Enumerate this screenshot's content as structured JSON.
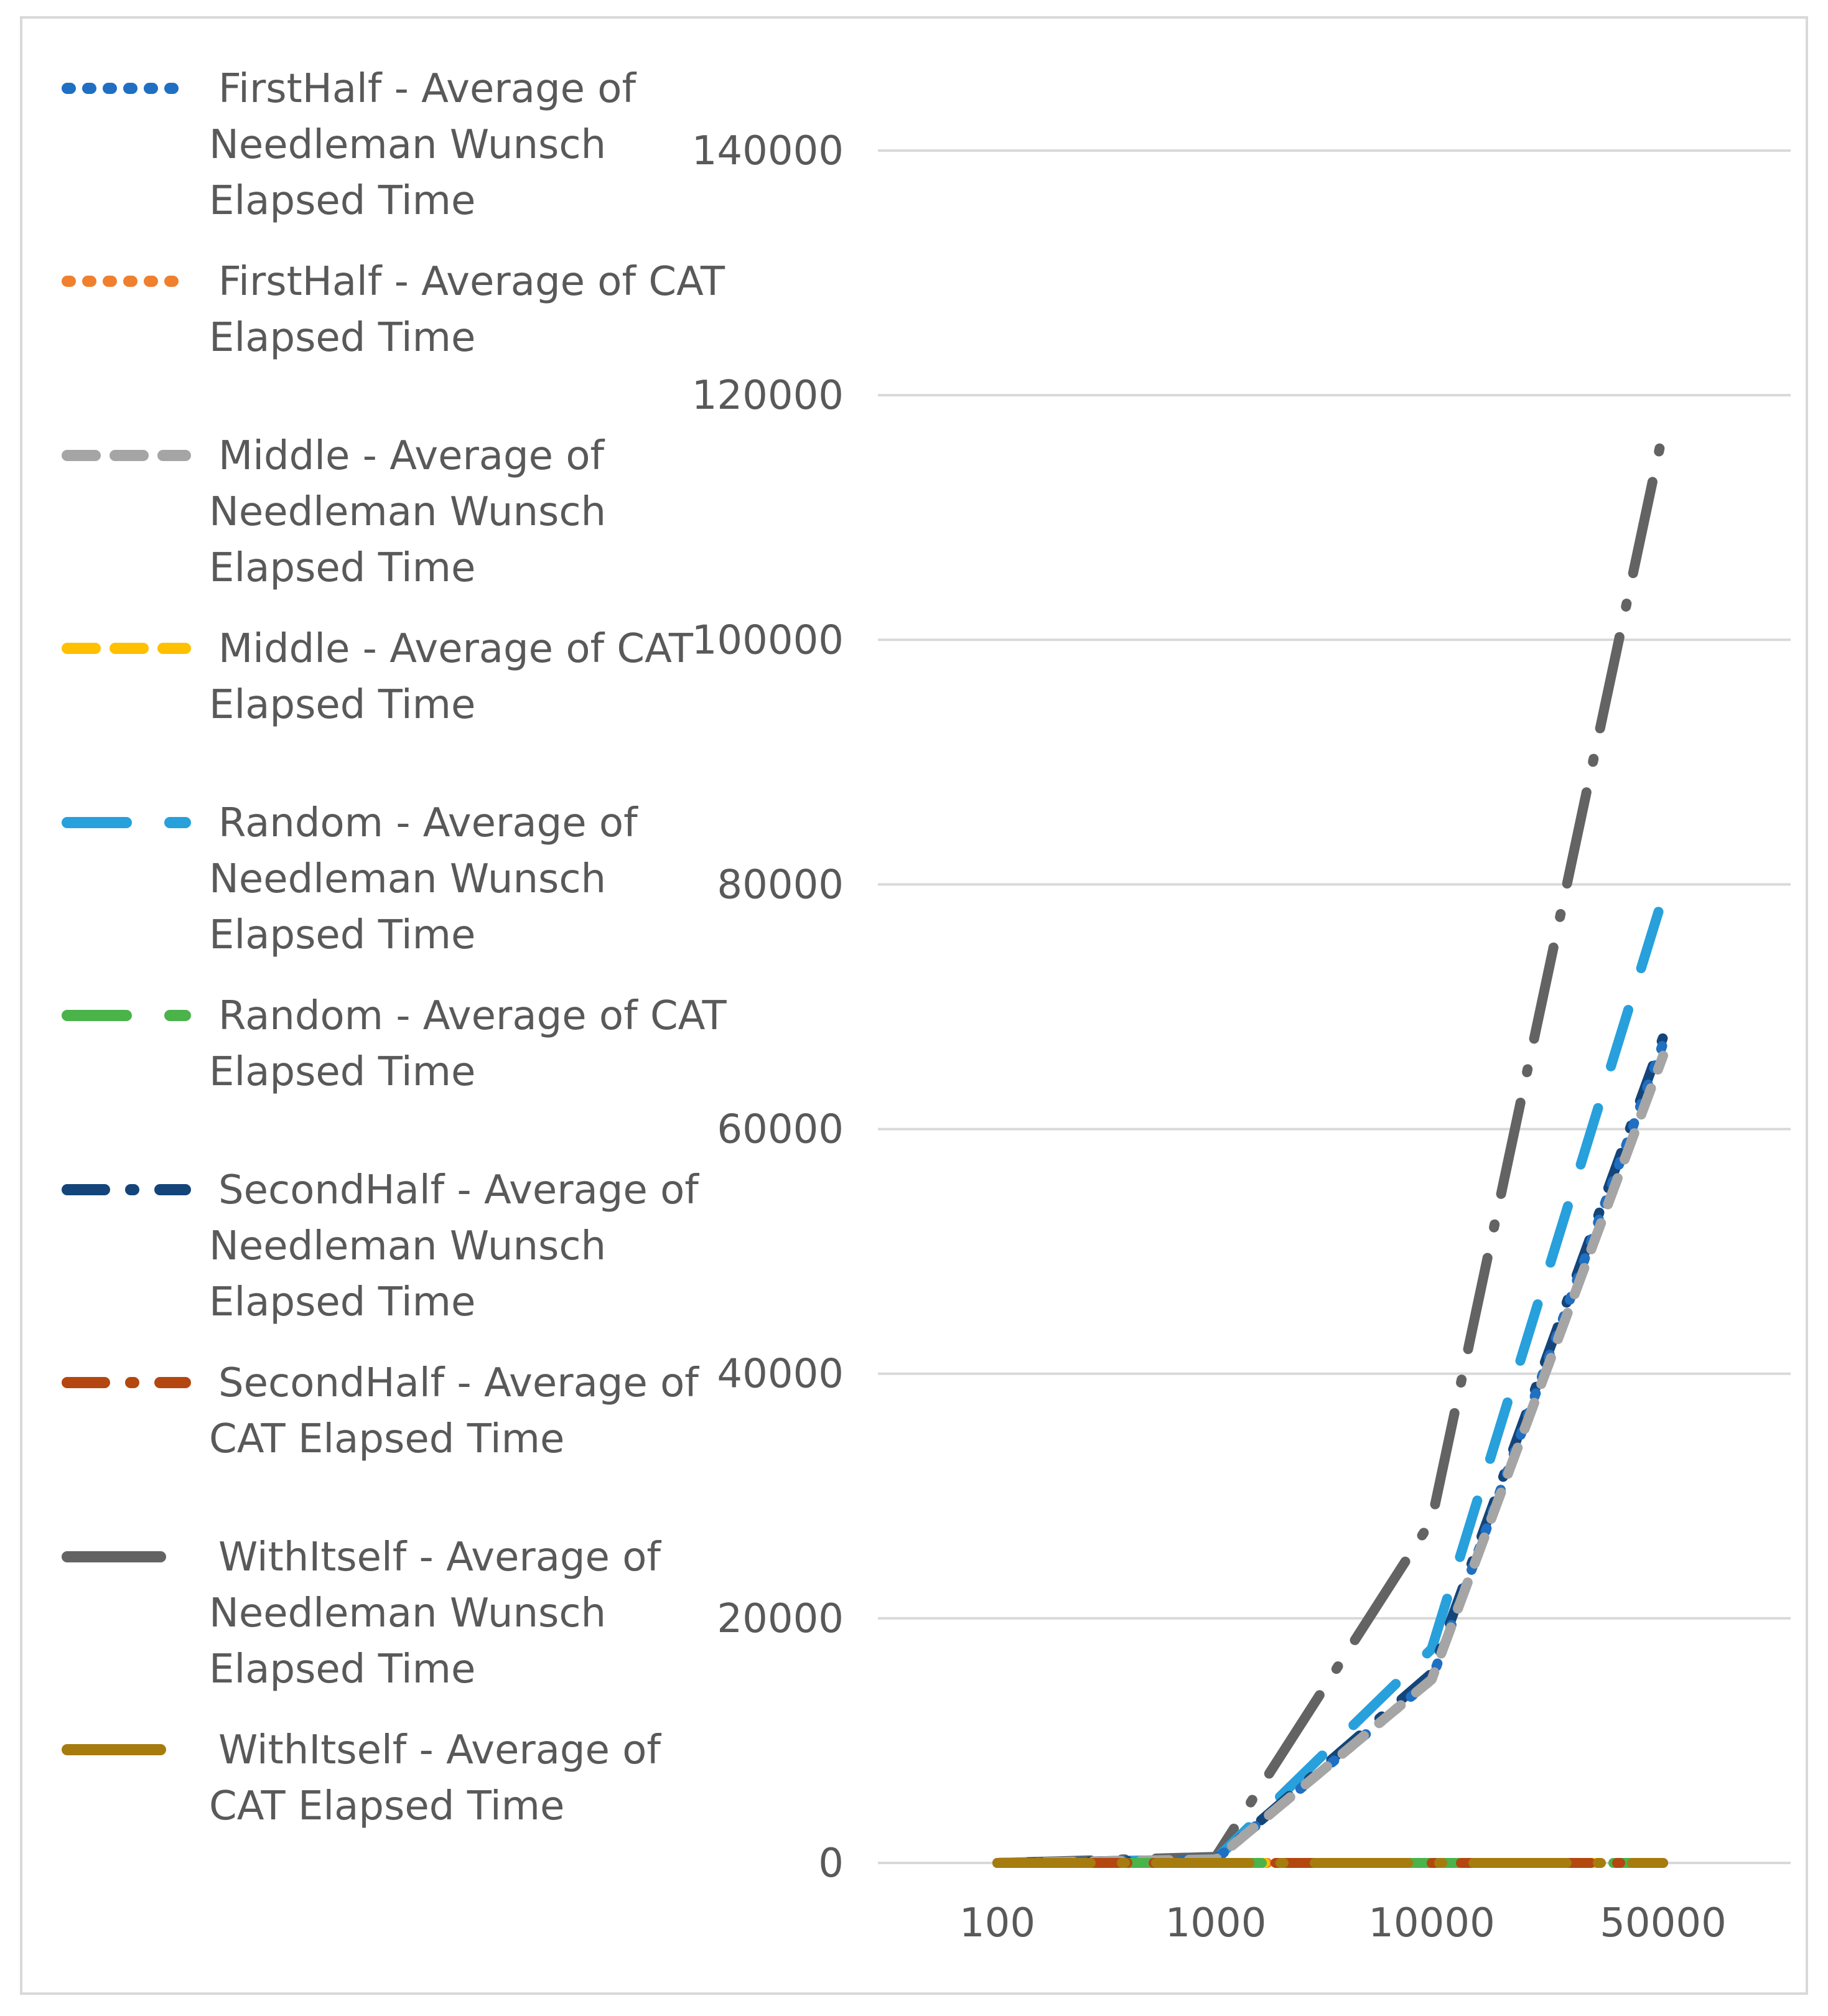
{
  "chart_data": {
    "type": "line",
    "title": "",
    "xlabel": "",
    "ylabel": "",
    "categories": [
      "100",
      "1000",
      "10000",
      "50000"
    ],
    "ylim": [
      0,
      140000
    ],
    "yticks": [
      0,
      20000,
      40000,
      60000,
      80000,
      100000,
      120000,
      140000
    ],
    "ytick_labels": [
      "0",
      "20000",
      "40000",
      "60000",
      "80000",
      "100000",
      "120000",
      "140000"
    ],
    "grid": true,
    "legend_position": "left",
    "series": [
      {
        "name": "FirstHalf - Average of Needleman Wunsch Elapsed Time",
        "legend_lines": [
          "FirstHalf - Average of",
          "Needleman Wunsch",
          "Elapsed Time"
        ],
        "color": "#1f6fc2",
        "style": "dot",
        "values": [
          0,
          300,
          15000,
          67000
        ]
      },
      {
        "name": "FirstHalf - Average of CAT Elapsed Time",
        "legend_lines": [
          "FirstHalf - Average of CAT",
          "Elapsed Time"
        ],
        "color": "#f07f2e",
        "style": "dot",
        "values": [
          0,
          0,
          0,
          0
        ]
      },
      {
        "name": "Middle - Average of Needleman Wunsch Elapsed Time",
        "legend_lines": [
          "Middle - Average of",
          "Needleman Wunsch",
          "Elapsed Time"
        ],
        "color": "#a5a5a5",
        "style": "dash",
        "values": [
          0,
          300,
          15000,
          66000
        ]
      },
      {
        "name": "Middle - Average of CAT Elapsed Time",
        "legend_lines": [
          "Middle - Average of CAT",
          "Elapsed Time"
        ],
        "color": "#ffc000",
        "style": "dash",
        "values": [
          0,
          0,
          0,
          0
        ]
      },
      {
        "name": "Random - Average of Needleman Wunsch Elapsed Time",
        "legend_lines": [
          "Random - Average of",
          "Needleman Wunsch",
          "Elapsed Time"
        ],
        "color": "#27a0dc",
        "style": "longdash",
        "values": [
          0,
          300,
          17500,
          79000
        ]
      },
      {
        "name": "Random - Average of CAT Elapsed Time",
        "legend_lines": [
          "Random - Average of CAT",
          "Elapsed Time"
        ],
        "color": "#4ab34a",
        "style": "longdash",
        "values": [
          0,
          0,
          0,
          0
        ]
      },
      {
        "name": "SecondHalf - Average of Needleman Wunsch Elapsed Time",
        "legend_lines": [
          "SecondHalf - Average of",
          "Needleman Wunsch",
          "Elapsed Time"
        ],
        "color": "#14457a",
        "style": "dashdot",
        "values": [
          0,
          300,
          15500,
          67500
        ]
      },
      {
        "name": "SecondHalf - Average of CAT Elapsed Time",
        "legend_lines": [
          "SecondHalf - Average of",
          "CAT Elapsed Time"
        ],
        "color": "#b3470f",
        "style": "dashdot",
        "values": [
          0,
          0,
          0,
          0
        ]
      },
      {
        "name": "WithItself - Average of Needleman Wunsch Elapsed Time",
        "legend_lines": [
          "WithItself - Average of",
          "Needleman Wunsch",
          "Elapsed Time"
        ],
        "color": "#636363",
        "style": "longdashdot",
        "values": [
          0,
          500,
          28000,
          117000
        ]
      },
      {
        "name": "WithItself - Average of CAT Elapsed Time",
        "legend_lines": [
          "WithItself - Average of",
          "CAT Elapsed Time"
        ],
        "color": "#a67c0f",
        "style": "longdashdot",
        "values": [
          0,
          0,
          0,
          0
        ]
      }
    ]
  }
}
